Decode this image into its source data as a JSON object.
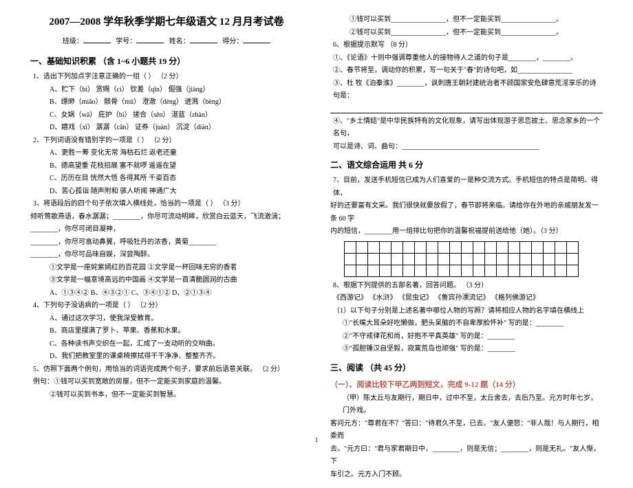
{
  "title": "2007—2008 学年秋季学期七年级语文 12 月月考试卷",
  "meta": {
    "class": "班级：",
    "id": "学号：",
    "name": "姓名：",
    "score": "得分："
  },
  "sec1": {
    "heading": "一、基础知识积累  （含 1~6 小题共 19 分）",
    "q1": {
      "stem": "1、选出下列加点字注意正确的一组（      ）  （2 分）",
      "a": "A、贮下（bì）    赏赐（cì）       钦差（qīn）     倔强（jiàng）",
      "b": "B、缥缈（miǎo）   骸骨（mǔ）      澄澈（dèng）    迸溅（bèng）",
      "c": "C、女娲（wā）    庇护（bì）      搓合（sēn）     湛蓝（zhàn）",
      "d": "D、嬉戏（xī）    潺潺（cān）     证券（juàn）    沉淀（diàn）"
    },
    "q2": {
      "stem": "2、下列词语没有错别字的一项是（      ）  （2 分）",
      "a": "A、更胜一筹    变化无常    海枯石烂    返老还童",
      "b": "B、德高望重    花枝招展    塞不就啰    遥遥在望",
      "c": "C、历历在目    恍然大悟    各得其所    千姿百态",
      "d": "D、苦心孤诣    随声附和    骇人听闻    神通广大"
    },
    "q3": {
      "stem": "3、将语段后的四个句子依次填入横线处，恰当的一项是（      ）  （3 分）",
      "body1": "倾听莺歌燕语，春水潺潺；________，你尽可流动明眸，欣赏白云蓝天，飞流激湍；________，你尽可闭目凝神，",
      "body2": "________，你尽可翕动鼻翼，呼吸牡丹的浓香，黄菊________",
      "body3": "________，你尽可品味自娱，深尝陶醉。",
      "o1": "①文学是一座姹紫嫣红的百花园       ②文学是一杯回味无穷的香茗",
      "o2": "③文学是一幅意境高远的中国画       ④文学是一首清脆圆润的古曲",
      "opts": "A、①③④②    B、④③②①    C、③④①②    D、②①③④"
    },
    "q4": {
      "stem": "4、下列句子没语病的一项是（      ）  （2 分）",
      "a": "A、通过这次学习，使我深受教育。",
      "b": "B、商店里摆满了罗卜、苹果、香蕉和水果。",
      "c": "C、各种读书声交织在一起，汇成了一支动听的交响曲。",
      "d": "D、我们把教室里的课桌椅擦拭得干干净净、整整齐齐。"
    },
    "q5": {
      "stem": "5、仿照下面两个例句，用恰当的词语完成两个句子，要求前后语意关联。  （2 分）",
      "ex1": "例句：①钱可以买到宽敞的房屋，但不一定能买到家庭的温馨。",
      "ex2": "②钱可以买到书本，但不一定能买到智慧。"
    }
  },
  "right": {
    "r1": "①钱可以买到________________，但不一定能买到________________。",
    "r2": "②钱可以买到________________，但不一定能买到________________。",
    "q6": {
      "stem": "6、根据提示默写    （8 分）",
      "a": "①、《论语》十则中强调尊重他人的接物待人之道的句子是________，________。",
      "b": "②、春节将至，调动你的积累，写一句关于\"春\"的诗句吧，如________________",
      "c": "③、杜 牧《泊秦淮》________，讽刺唐王朝封建统治者不顾国家安危肆意荒淫享乐的诗句是：",
      "c_blank": "",
      "d": "④、\"乡土情结\"是中华民族特有的文化现象，请写出体现游子思恋故土、思念家乡的一个名句，",
      "d2": "可以是诗、词、曲句：________________________________________"
    },
    "sec2": {
      "heading": "二、语文综合运用    共 6 分",
      "q7a": "7、目前，发送手机短信已成为人们喜爱的一是种交流方式。手机短信的特点是简明、得体，",
      "q7b": "好的还要富有文采。我们很快就要放假了，春节即将来临。请给你在外地的亲戚朋友发一条 60 字",
      "q7c": "内的短信，________用一组排比句把你的温馨祝福提前送给他（她）。（3 分）"
    },
    "grid": {
      "rows": 3,
      "cols": 20
    },
    "q8": {
      "stem": "8、根据下列提供的五部名著，回答问题。    （3 分）",
      "books": "《西游记》  《水浒》  《昆虫记》    《鲁宾孙漂流记》    《格列佛游记》",
      "p": "（1）以下句子分别是上述名著中哪位人物的写照？请将相应人物的名字填在横线上",
      "a": "①\"长嘴大耳朵好吃懒做，肥头呆脑的不自卑厚脸怀补\"    写的是：________",
      "b": "②\"不守戒律花和尚，好抱不平真英雄\"                写的是：________",
      "c": "③\"孤胆锤汉自坚毅，寂寞荒岛也顽强\"                写的是：________"
    },
    "sec3": {
      "heading": "三、阅读    （共 45 分）",
      "sub": "（一）、阅读比较下甲乙两则短文，完成 9-12 题（14 分）",
      "p1": "（甲）陈太丘与友期行，期日中，过中不至，太丘舍去，去后乃至。元方时年七岁，门外戏。",
      "p2": "客问元方：\"尊君在不？\"答曰：\"待君久不至，已去。\"友人便怒：\"非人哉！与人期行，相委而",
      "p3": "去。\"元方曰：\"君与家君期日中，________，则是无信；________，则是无礼。\"友人惭，下",
      "p4": "车引之。元方入门不顾。"
    }
  },
  "footer": "1"
}
